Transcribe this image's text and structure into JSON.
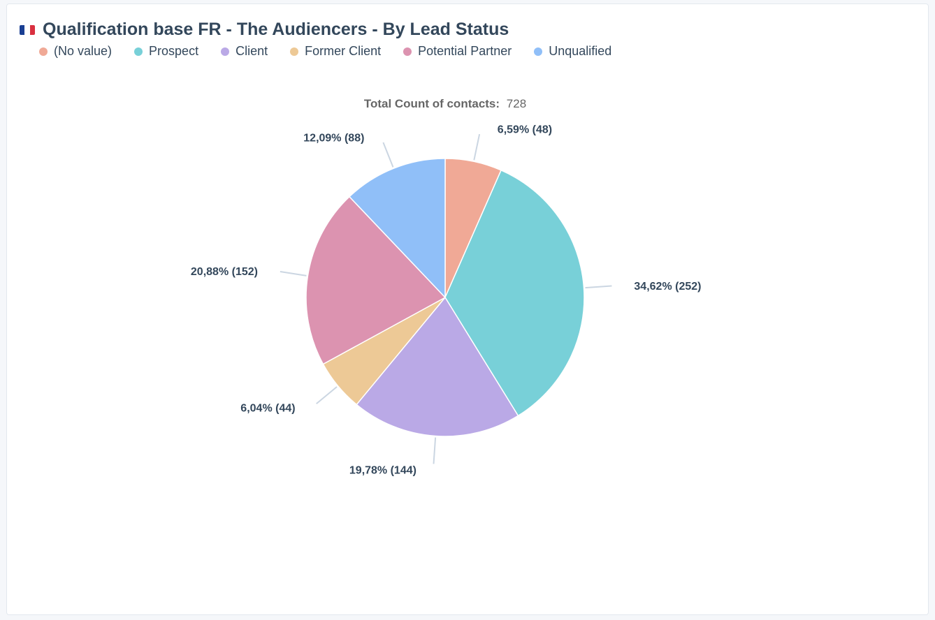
{
  "header": {
    "title": "Qualification base FR - The Audiencers - By Lead Status",
    "flag_colors": [
      "#1a3f93",
      "#ffffff",
      "#d93040"
    ]
  },
  "total": {
    "label": "Total Count of contacts:",
    "value": "728"
  },
  "legend_items": [
    {
      "label": "(No value)",
      "color": "#f0a996"
    },
    {
      "label": "Prospect",
      "color": "#78d0d8"
    },
    {
      "label": "Client",
      "color": "#baa9e6"
    },
    {
      "label": "Former Client",
      "color": "#edc996"
    },
    {
      "label": "Potential Partner",
      "color": "#dc93b0"
    },
    {
      "label": "Unqualified",
      "color": "#90bff8"
    }
  ],
  "chart_data": {
    "type": "pie",
    "title": "Qualification base FR - The Audiencers - By Lead Status",
    "total": 728,
    "legend_position": "top-left",
    "slices": [
      {
        "name": "(No value)",
        "value": 48,
        "percent": 6.59,
        "label": "6,59% (48)",
        "color": "#f0a996"
      },
      {
        "name": "Prospect",
        "value": 252,
        "percent": 34.62,
        "label": "34,62% (252)",
        "color": "#78d0d8"
      },
      {
        "name": "Client",
        "value": 144,
        "percent": 19.78,
        "label": "19,78% (144)",
        "color": "#baa9e6"
      },
      {
        "name": "Former Client",
        "value": 44,
        "percent": 6.04,
        "label": "6,04% (44)",
        "color": "#edc996"
      },
      {
        "name": "Potential Partner",
        "value": 152,
        "percent": 20.88,
        "label": "20,88% (152)",
        "color": "#dc93b0"
      },
      {
        "name": "Unqualified",
        "value": 88,
        "percent": 12.09,
        "label": "12,09% (88)",
        "color": "#90bff8"
      }
    ]
  }
}
